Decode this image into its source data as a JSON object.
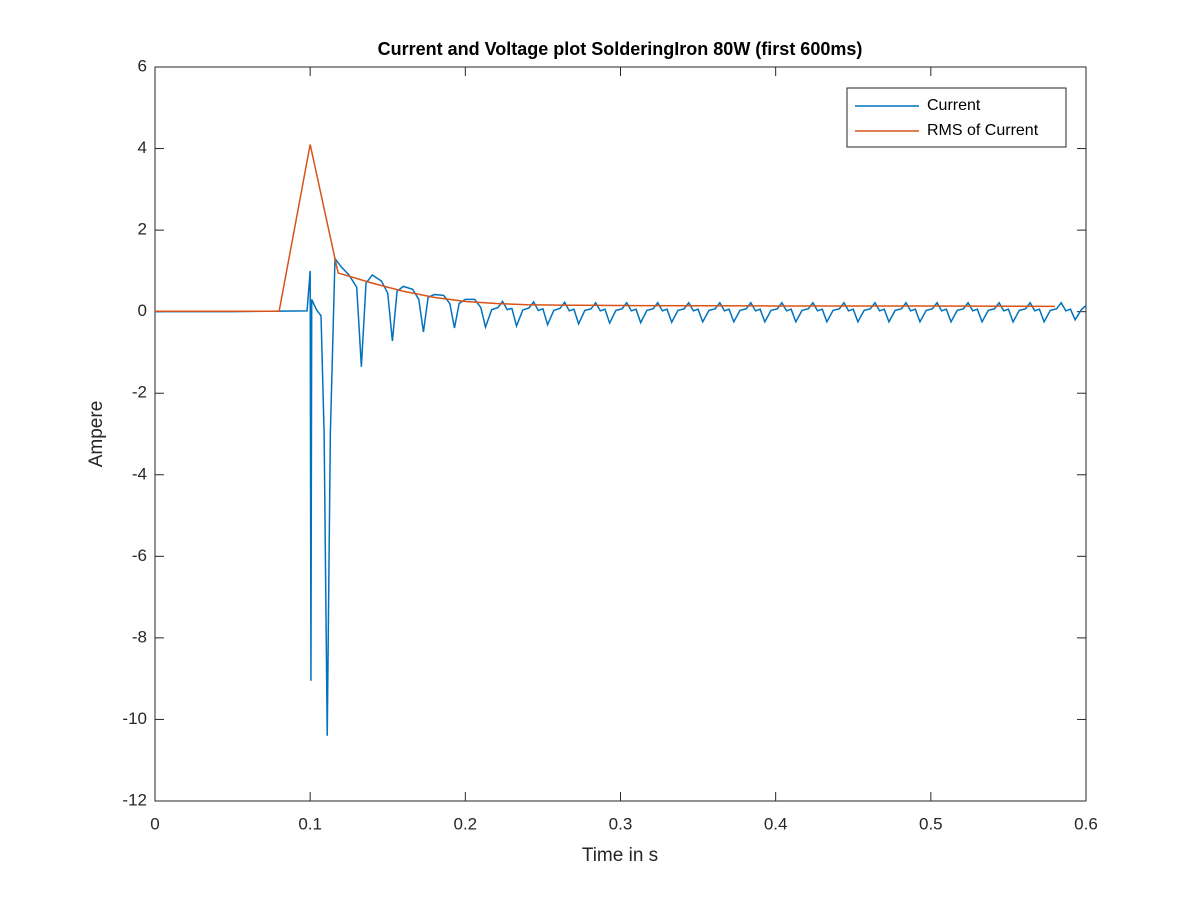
{
  "chart_data": {
    "type": "line",
    "title": "Current and Voltage plot SolderingIron 80W (first 600ms)",
    "x_label": "Time in s",
    "y_label": "Ampere",
    "xlim": [
      0,
      0.6
    ],
    "xticks": [
      0,
      0.1,
      0.2,
      0.3,
      0.4,
      0.5,
      0.6
    ],
    "ylim": [
      -12,
      6
    ],
    "yticks": [
      -12,
      -10,
      -8,
      -6,
      -4,
      -2,
      0,
      2,
      4,
      6
    ],
    "grid": false,
    "legend": "upper right",
    "series": [
      {
        "name": "Current",
        "color": "#0072bd",
        "x": [
          0,
          0.05,
          0.098,
          0.1,
          0.1005,
          0.101,
          0.104,
          0.107,
          0.109,
          0.111,
          0.113,
          0.116,
          0.12,
          0.125,
          0.13,
          0.133,
          0.136,
          0.14,
          0.146,
          0.15,
          0.153,
          0.156,
          0.16,
          0.166,
          0.17,
          0.173,
          0.176,
          0.18,
          0.186,
          0.19,
          0.193,
          0.196,
          0.2,
          0.206,
          0.21,
          0.213,
          0.217,
          0.221,
          0.224,
          0.227,
          0.23,
          0.233,
          0.237,
          0.241,
          0.244,
          0.247,
          0.25,
          0.253,
          0.257,
          0.261,
          0.264,
          0.267,
          0.27,
          0.273,
          0.277,
          0.281,
          0.284,
          0.287,
          0.29,
          0.293,
          0.297,
          0.301,
          0.304,
          0.307,
          0.31,
          0.313,
          0.317,
          0.321,
          0.324,
          0.327,
          0.33,
          0.333,
          0.337,
          0.341,
          0.344,
          0.347,
          0.35,
          0.353,
          0.357,
          0.361,
          0.364,
          0.367,
          0.37,
          0.373,
          0.377,
          0.381,
          0.384,
          0.387,
          0.39,
          0.393,
          0.397,
          0.401,
          0.404,
          0.407,
          0.41,
          0.413,
          0.417,
          0.421,
          0.424,
          0.427,
          0.43,
          0.433,
          0.437,
          0.441,
          0.444,
          0.447,
          0.45,
          0.453,
          0.457,
          0.461,
          0.464,
          0.467,
          0.47,
          0.473,
          0.477,
          0.481,
          0.484,
          0.487,
          0.49,
          0.493,
          0.497,
          0.501,
          0.504,
          0.507,
          0.51,
          0.513,
          0.517,
          0.521,
          0.524,
          0.527,
          0.53,
          0.533,
          0.537,
          0.541,
          0.544,
          0.547,
          0.55,
          0.553,
          0.557,
          0.561,
          0.564,
          0.567,
          0.57,
          0.573,
          0.577,
          0.581,
          0.584,
          0.587,
          0.59,
          0.593,
          0.597,
          0.6
        ],
        "values": [
          0,
          0,
          0.02,
          1.0,
          -9.05,
          0.3,
          0.05,
          -0.1,
          -3,
          -10.4,
          -3,
          1.3,
          1.1,
          0.9,
          0.6,
          -1.35,
          0.7,
          0.9,
          0.75,
          0.45,
          -0.72,
          0.5,
          0.62,
          0.55,
          0.3,
          -0.5,
          0.35,
          0.42,
          0.4,
          0.2,
          -0.4,
          0.2,
          0.3,
          0.3,
          0.1,
          -0.38,
          0.05,
          0.1,
          0.25,
          0.05,
          0.08,
          -0.35,
          0.04,
          0.09,
          0.24,
          0.03,
          0.07,
          -0.32,
          0.03,
          0.08,
          0.23,
          0.02,
          0.06,
          -0.3,
          0.03,
          0.07,
          0.22,
          0.02,
          0.06,
          -0.28,
          0.03,
          0.07,
          0.22,
          0.02,
          0.06,
          -0.27,
          0.03,
          0.07,
          0.22,
          0.02,
          0.06,
          -0.26,
          0.03,
          0.07,
          0.22,
          0.02,
          0.06,
          -0.25,
          0.03,
          0.07,
          0.22,
          0.02,
          0.06,
          -0.25,
          0.03,
          0.07,
          0.22,
          0.02,
          0.06,
          -0.25,
          0.03,
          0.07,
          0.22,
          0.02,
          0.06,
          -0.25,
          0.03,
          0.07,
          0.22,
          0.02,
          0.06,
          -0.25,
          0.03,
          0.07,
          0.22,
          0.02,
          0.06,
          -0.25,
          0.03,
          0.07,
          0.22,
          0.02,
          0.06,
          -0.25,
          0.03,
          0.07,
          0.22,
          0.02,
          0.06,
          -0.25,
          0.03,
          0.07,
          0.22,
          0.02,
          0.06,
          -0.25,
          0.03,
          0.07,
          0.22,
          0.02,
          0.06,
          -0.25,
          0.03,
          0.07,
          0.22,
          0.02,
          0.06,
          -0.25,
          0.03,
          0.07,
          0.22,
          0.02,
          0.06,
          -0.25,
          0.03,
          0.07,
          0.22,
          0.02,
          0.06,
          -0.2,
          0.05,
          0.15
        ]
      },
      {
        "name": "RMS of Current",
        "color": "#d95319",
        "x": [
          0,
          0.08,
          0.1,
          0.118,
          0.14,
          0.16,
          0.18,
          0.2,
          0.22,
          0.24,
          0.26,
          0.3,
          0.4,
          0.5,
          0.58
        ],
        "values": [
          0.01,
          0.01,
          4.1,
          0.95,
          0.7,
          0.5,
          0.35,
          0.25,
          0.2,
          0.17,
          0.16,
          0.15,
          0.14,
          0.14,
          0.13
        ]
      }
    ]
  }
}
